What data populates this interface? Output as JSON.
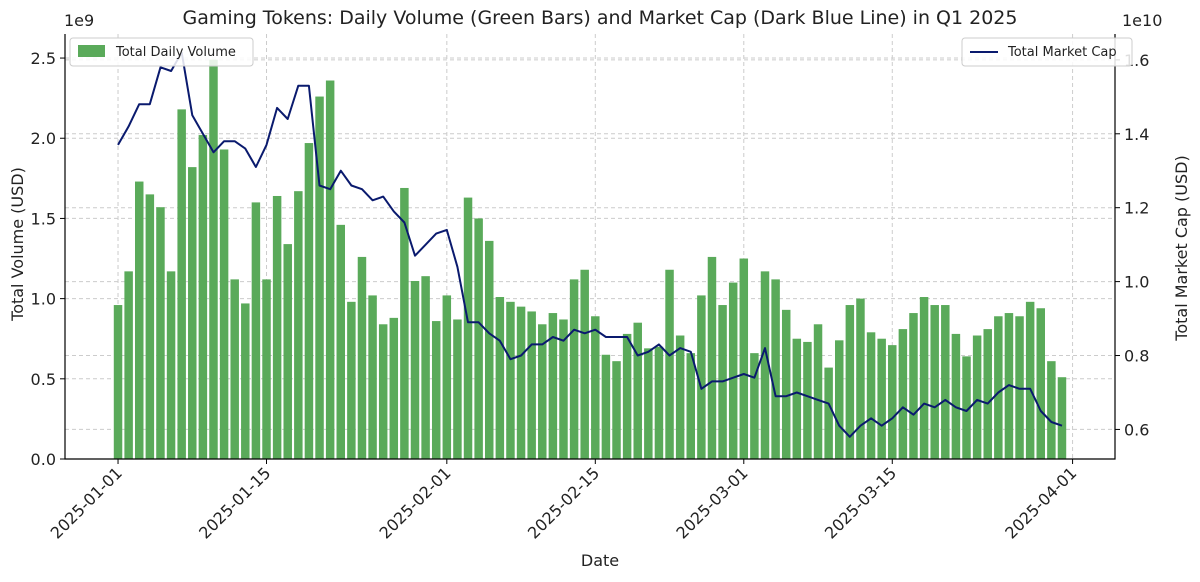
{
  "chart_data": {
    "type": "bar+line",
    "title": "Gaming Tokens: Daily Volume (Green Bars) and Market Cap (Dark Blue Line) in Q1 2025",
    "xlabel": "Date",
    "ylabel_left": "Total Volume (USD)",
    "ylabel_right": "Total Market Cap (USD)",
    "left_offset": "1e9",
    "right_offset": "1e10",
    "x_range": [
      "2025-01-01",
      "2025-03-31"
    ],
    "x_ticks": [
      "2025-01-01",
      "2025-01-15",
      "2025-02-01",
      "2025-02-15",
      "2025-03-01",
      "2025-03-15",
      "2025-04-01"
    ],
    "ylim_left": [
      0,
      2.65
    ],
    "yticks_left": [
      "0.0",
      "0.5",
      "1.0",
      "1.5",
      "2.0",
      "2.5"
    ],
    "ylim_right": [
      0.52,
      1.67
    ],
    "yticks_right": [
      "0.6",
      "0.8",
      "1.0",
      "1.2",
      "1.4",
      "1.6"
    ],
    "grid": true,
    "legend_left": {
      "label": "Total Daily Volume",
      "placement": "upper-left"
    },
    "legend_right": {
      "label": "Total Market Cap",
      "placement": "upper-right"
    },
    "colors": {
      "bars": "#5aaa5a",
      "line": "#0a1a6e"
    },
    "series": [
      {
        "name": "Total Daily Volume",
        "kind": "bar",
        "start_date": "2025-01-01",
        "values": [
          0.96,
          1.17,
          1.73,
          1.65,
          1.57,
          1.17,
          2.18,
          1.82,
          2.02,
          2.49,
          1.93,
          1.12,
          0.97,
          1.6,
          1.12,
          1.64,
          1.34,
          1.67,
          1.97,
          2.26,
          2.36,
          1.46,
          0.98,
          1.26,
          1.02,
          0.84,
          0.88,
          1.69,
          1.11,
          1.14,
          0.86,
          1.02,
          0.87,
          1.63,
          1.5,
          1.36,
          1.01,
          0.98,
          0.95,
          0.92,
          0.84,
          0.91,
          0.87,
          1.12,
          1.18,
          0.89,
          0.65,
          0.61,
          0.78,
          0.85,
          0.69,
          0.7,
          1.18,
          0.77,
          0.66,
          1.02,
          1.26,
          0.96,
          1.1,
          1.25,
          0.66,
          1.17,
          1.12,
          0.93,
          0.75,
          0.73,
          0.84,
          0.57,
          0.74,
          0.96,
          1.0,
          0.79,
          0.75,
          0.71,
          0.81,
          0.91,
          1.01,
          0.96,
          0.96,
          0.78,
          0.64,
          0.77,
          0.81,
          0.89,
          0.91,
          0.89,
          0.98,
          0.94,
          0.61,
          0.51
        ]
      },
      {
        "name": "Total Market Cap",
        "kind": "line",
        "start_date": "2025-01-01",
        "values": [
          1.37,
          1.42,
          1.48,
          1.48,
          1.58,
          1.57,
          1.62,
          1.45,
          1.4,
          1.35,
          1.38,
          1.38,
          1.36,
          1.31,
          1.37,
          1.47,
          1.44,
          1.53,
          1.53,
          1.26,
          1.25,
          1.3,
          1.26,
          1.25,
          1.22,
          1.23,
          1.19,
          1.16,
          1.07,
          1.1,
          1.13,
          1.14,
          1.04,
          0.89,
          0.89,
          0.86,
          0.84,
          0.79,
          0.8,
          0.83,
          0.83,
          0.85,
          0.84,
          0.87,
          0.86,
          0.87,
          0.85,
          0.85,
          0.85,
          0.8,
          0.81,
          0.83,
          0.8,
          0.82,
          0.81,
          0.71,
          0.73,
          0.73,
          0.74,
          0.75,
          0.74,
          0.82,
          0.69,
          0.69,
          0.7,
          0.69,
          0.68,
          0.67,
          0.61,
          0.58,
          0.61,
          0.63,
          0.61,
          0.63,
          0.66,
          0.64,
          0.67,
          0.66,
          0.68,
          0.66,
          0.65,
          0.68,
          0.67,
          0.7,
          0.72,
          0.71,
          0.71,
          0.65,
          0.62,
          0.61
        ]
      }
    ]
  }
}
